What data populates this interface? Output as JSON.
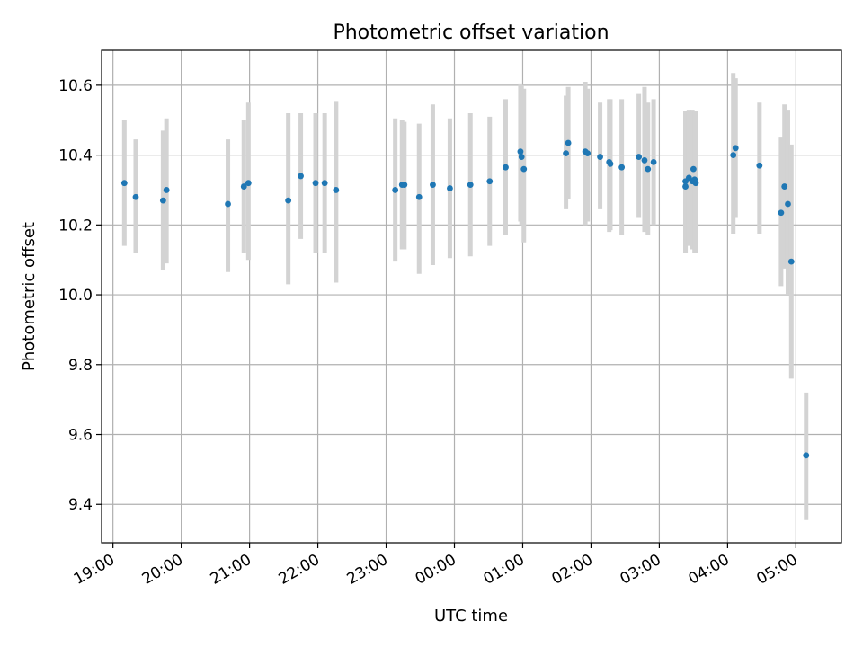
{
  "chart_data": {
    "type": "scatter",
    "title": "Photometric offset variation",
    "xlabel": "UTC time",
    "ylabel": "Photometric offset",
    "x_ticks": [
      "19:00",
      "20:00",
      "21:00",
      "22:00",
      "23:00",
      "00:00",
      "01:00",
      "02:00",
      "03:00",
      "04:00",
      "05:00"
    ],
    "y_ticks": [
      "9.4",
      "9.6",
      "9.8",
      "10.0",
      "10.2",
      "10.4",
      "10.6"
    ],
    "xlim": [
      "18:50",
      "05:40"
    ],
    "ylim": [
      9.29,
      10.7
    ],
    "grid": true,
    "colors": {
      "marker": "#1f77b4",
      "errorbar": "#d3d3d3"
    },
    "series": [
      {
        "x": [
          "19:10",
          "19:20",
          "19:44",
          "19:47",
          "20:41",
          "20:55",
          "20:59",
          "21:34",
          "21:45",
          "21:58",
          "22:06",
          "22:16",
          "23:08",
          "23:14",
          "23:16",
          "23:29",
          "23:41",
          "23:56",
          "24:14",
          "24:31",
          "24:45",
          "24:58",
          "24:59",
          "25:01",
          "25:38",
          "25:40",
          "25:55",
          "25:57",
          "26:08",
          "26:16",
          "26:17",
          "26:27",
          "26:42",
          "26:47",
          "26:50",
          "26:55",
          "27:23",
          "27:23",
          "27:26",
          "27:29",
          "27:30",
          "27:31",
          "27:32",
          "28:05",
          "28:07",
          "28:28",
          "28:47",
          "28:50",
          "28:53",
          "28:56",
          "29:09"
        ],
        "y": [
          10.32,
          10.28,
          10.27,
          10.3,
          10.26,
          10.31,
          10.32,
          10.27,
          10.34,
          10.32,
          10.32,
          10.3,
          10.3,
          10.315,
          10.315,
          10.28,
          10.315,
          10.305,
          10.315,
          10.325,
          10.365,
          10.41,
          10.395,
          10.36,
          10.405,
          10.435,
          10.41,
          10.405,
          10.395,
          10.38,
          10.375,
          10.365,
          10.395,
          10.385,
          10.36,
          10.38,
          10.325,
          10.31,
          10.335,
          10.325,
          10.36,
          10.33,
          10.32,
          10.4,
          10.42,
          10.37,
          10.235,
          10.31,
          10.26,
          10.095,
          9.54
        ],
        "err_low": [
          10.14,
          10.12,
          10.07,
          10.09,
          10.065,
          10.12,
          10.1,
          10.03,
          10.16,
          10.12,
          10.12,
          10.035,
          10.095,
          10.13,
          10.13,
          10.06,
          10.085,
          10.105,
          10.11,
          10.14,
          10.17,
          10.21,
          10.2,
          10.15,
          10.245,
          10.275,
          10.2,
          10.21,
          10.245,
          10.18,
          10.185,
          10.17,
          10.22,
          10.18,
          10.17,
          10.2,
          10.12,
          10.12,
          10.14,
          10.13,
          10.165,
          10.12,
          10.12,
          10.175,
          10.22,
          10.175,
          10.025,
          10.075,
          10.0,
          9.76,
          9.355
        ],
        "err_high": [
          10.5,
          10.445,
          10.47,
          10.505,
          10.445,
          10.5,
          10.55,
          10.52,
          10.52,
          10.52,
          10.52,
          10.555,
          10.505,
          10.5,
          10.495,
          10.49,
          10.545,
          10.505,
          10.52,
          10.51,
          10.56,
          10.605,
          10.6,
          10.59,
          10.57,
          10.595,
          10.61,
          10.59,
          10.55,
          10.56,
          10.56,
          10.56,
          10.575,
          10.595,
          10.55,
          10.56,
          10.52,
          10.525,
          10.53,
          10.53,
          10.525,
          10.525,
          10.525,
          10.635,
          10.62,
          10.55,
          10.45,
          10.545,
          10.53,
          10.43,
          9.72
        ]
      }
    ]
  }
}
